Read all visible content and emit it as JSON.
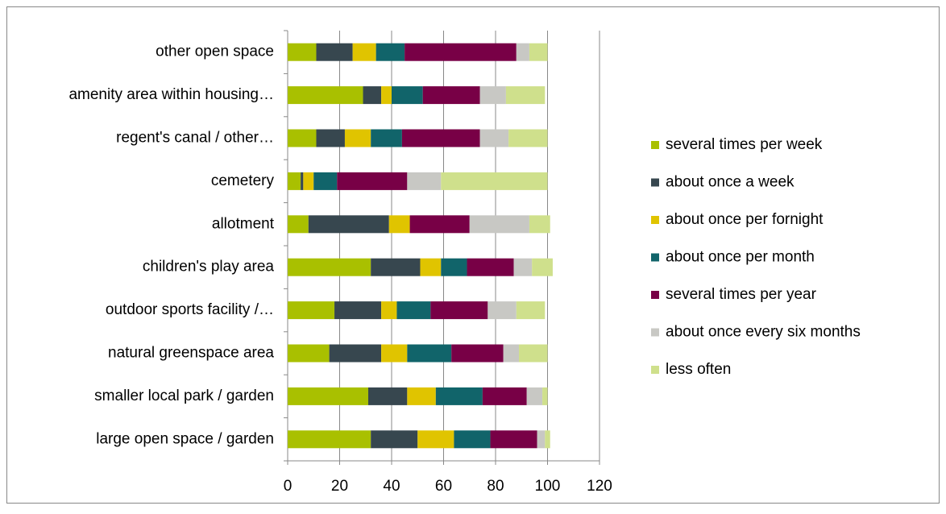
{
  "chart_data": {
    "type": "stacked_barh",
    "categories": [
      "other open space",
      "amenity area within housing…",
      "regent's canal / other…",
      "cemetery",
      "allotment",
      "children's play area",
      "outdoor sports facility /…",
      "natural greenspace area",
      "smaller local park / garden",
      "large open space / garden"
    ],
    "series": [
      {
        "name": "several times per week",
        "color": "#a9c000",
        "values": [
          11,
          29,
          11,
          5,
          8,
          32,
          18,
          16,
          31,
          32
        ]
      },
      {
        "name": "about once a week",
        "color": "#37474f",
        "values": [
          14,
          7,
          11,
          1,
          31,
          19,
          18,
          20,
          15,
          18
        ]
      },
      {
        "name": "about once per fornight",
        "color": "#e0c400",
        "values": [
          9,
          4,
          10,
          4,
          8,
          8,
          6,
          10,
          11,
          14
        ]
      },
      {
        "name": "about once per month",
        "color": "#11646a",
        "values": [
          11,
          12,
          12,
          9,
          0,
          10,
          13,
          17,
          18,
          14
        ]
      },
      {
        "name": "several times per year",
        "color": "#780046",
        "values": [
          43,
          22,
          30,
          27,
          23,
          18,
          22,
          20,
          17,
          18
        ]
      },
      {
        "name": "about once every six months",
        "color": "#c8c8c4",
        "values": [
          5,
          10,
          11,
          13,
          23,
          7,
          11,
          6,
          6,
          3
        ]
      },
      {
        "name": "less often",
        "color": "#cfe08c",
        "values": [
          7,
          15,
          15,
          41,
          8,
          8,
          11,
          11,
          2,
          2
        ]
      }
    ],
    "xlim": [
      0,
      120
    ],
    "xticks": [
      0,
      20,
      40,
      60,
      80,
      100,
      120
    ],
    "grid": true,
    "legend": "right"
  }
}
